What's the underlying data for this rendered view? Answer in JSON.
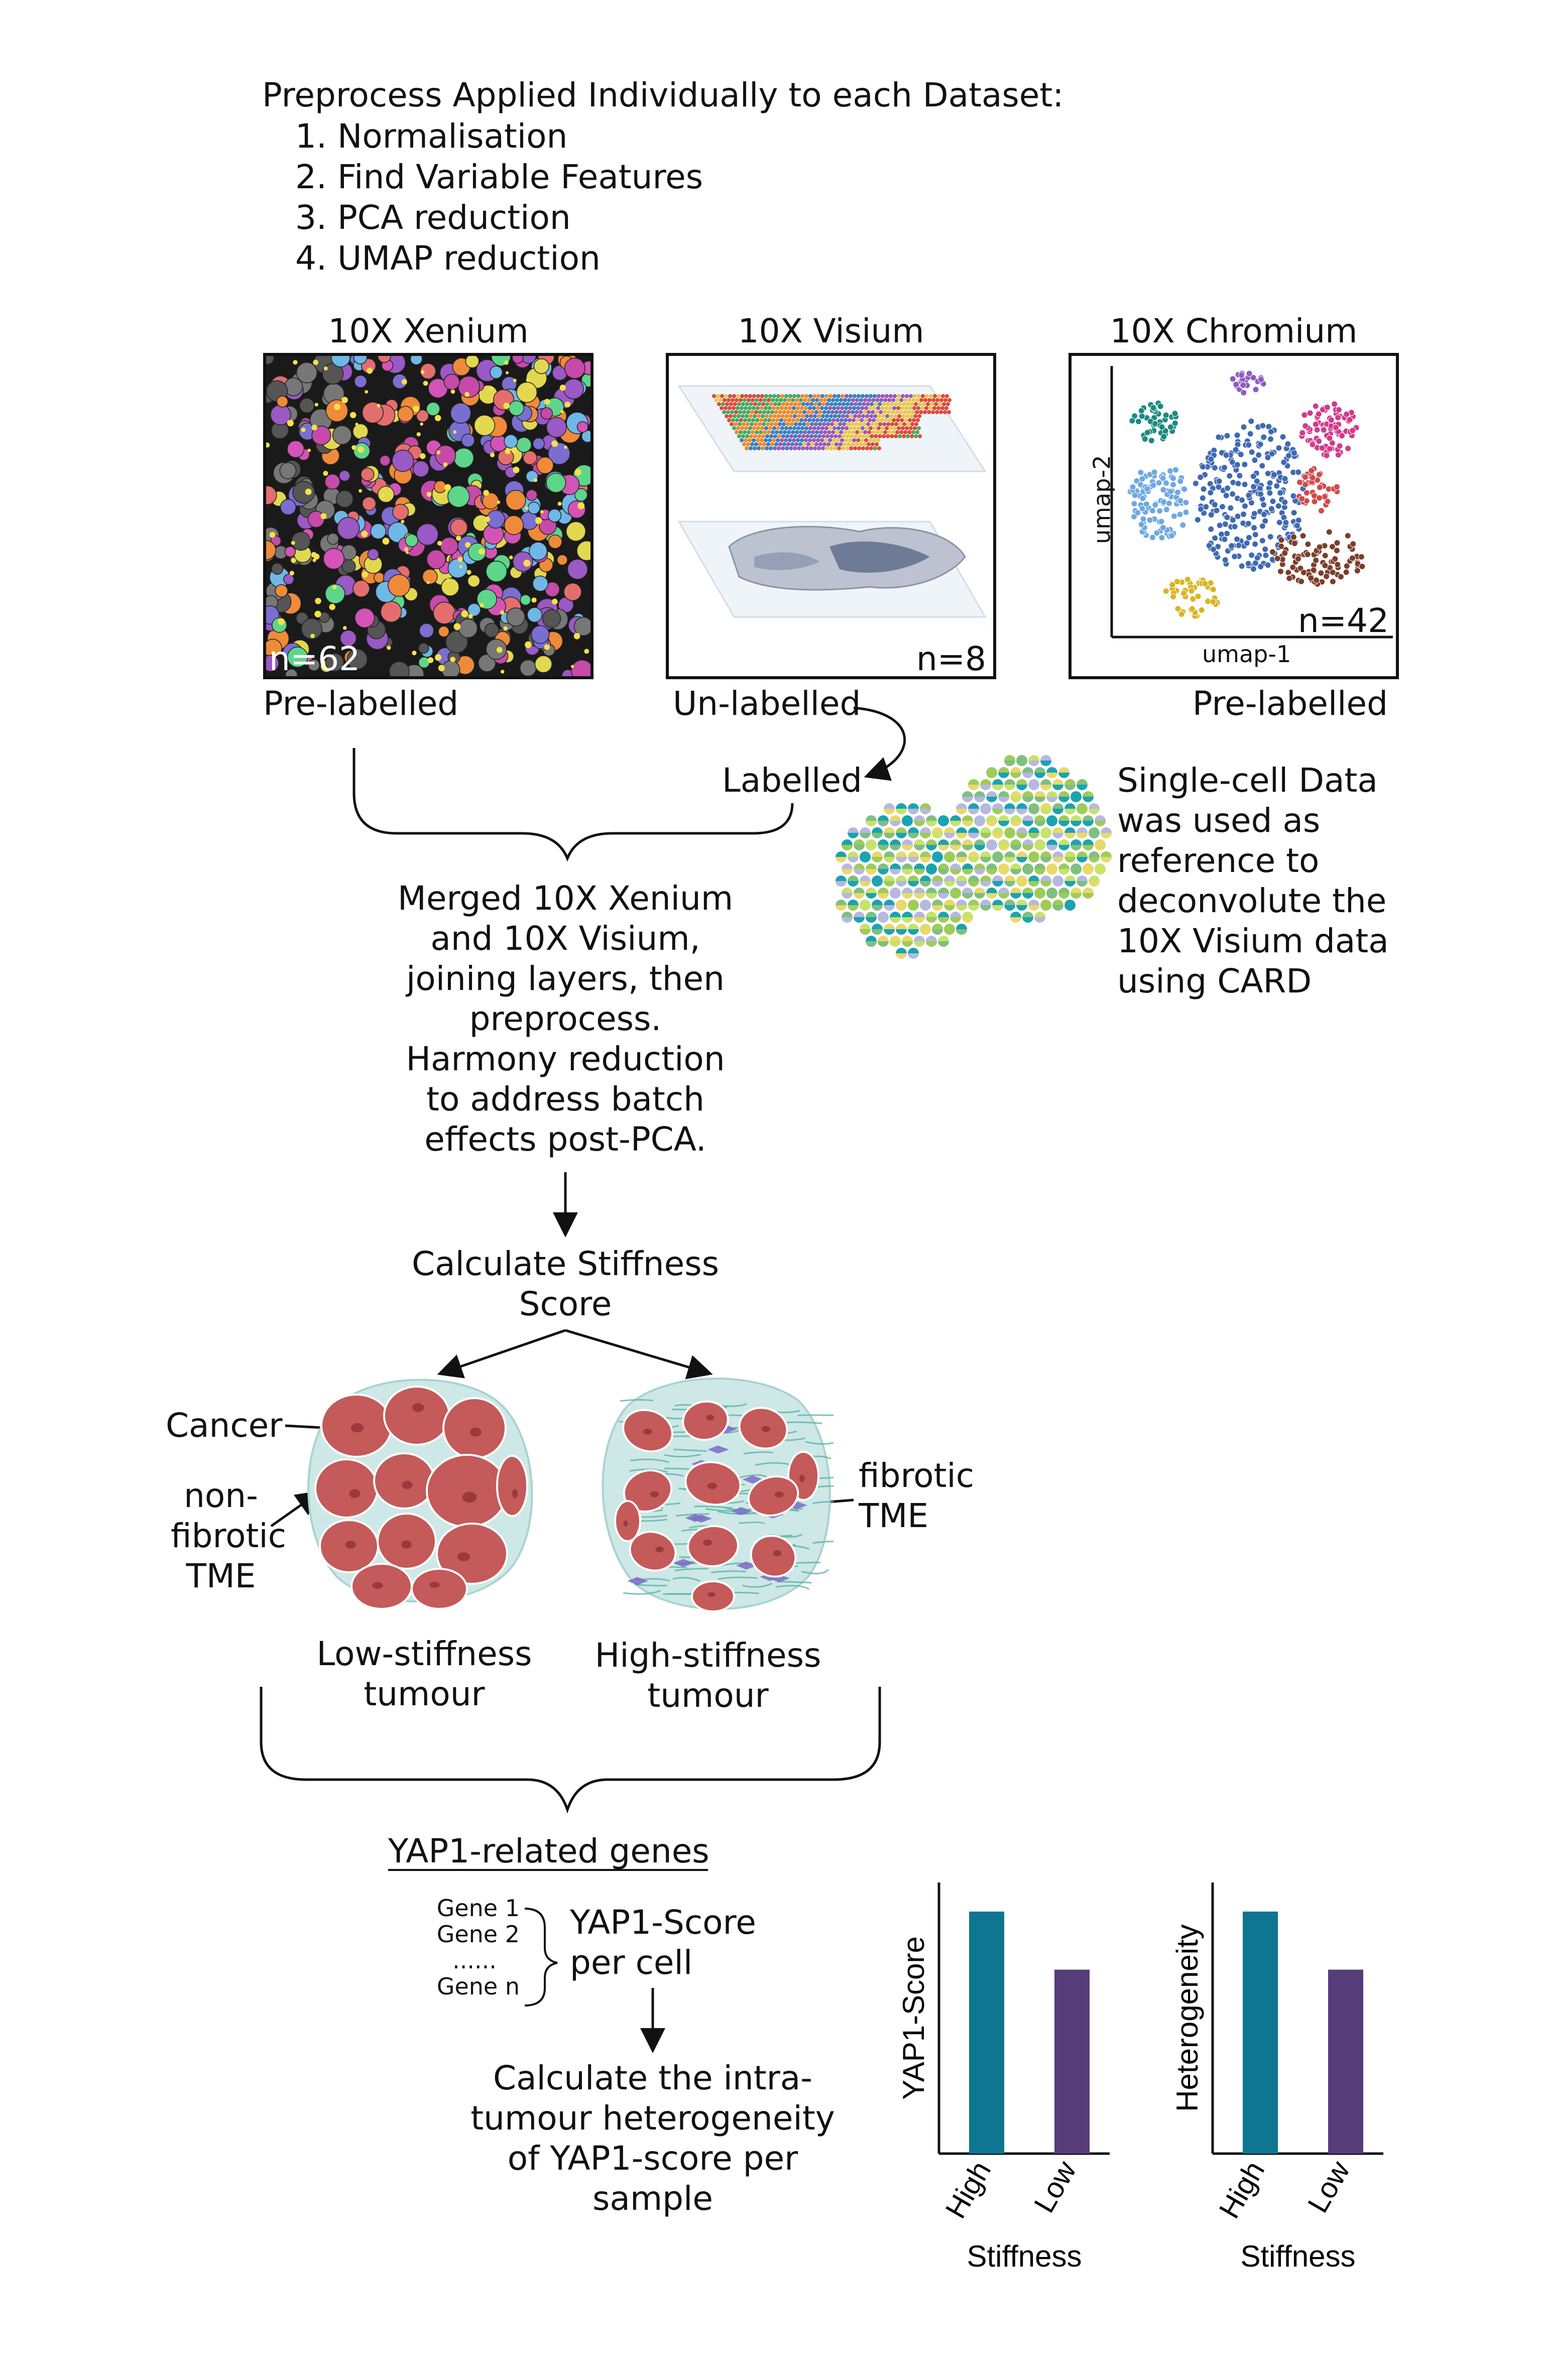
{
  "preprocess": {
    "heading": "Preprocess Applied Individually to each Dataset:",
    "steps": [
      "1.  Normalisation",
      "2.  Find Variable Features",
      "3.  PCA reduction",
      "4.  UMAP reduction"
    ]
  },
  "datasets": {
    "xenium": {
      "title": "10X Xenium",
      "n": "n=62",
      "status": "Pre-labelled"
    },
    "visium": {
      "title": "10X Visium",
      "n": "n=8",
      "status": "Un-labelled",
      "after": "Labelled"
    },
    "chromium": {
      "title": "10X Chromium",
      "n": "n=42",
      "status": "Pre-labelled",
      "xaxis": "umap-1",
      "yaxis": "umap-2"
    }
  },
  "deconvolution": {
    "lines": [
      "Single-cell Data",
      "was used as",
      "reference to",
      "deconvolute the",
      "10X Visium data",
      "using CARD"
    ]
  },
  "merge": {
    "lines": [
      "Merged 10X Xenium",
      "and 10X Visium,",
      "joining layers, then",
      "preprocess.",
      "Harmony reduction",
      "to address batch",
      "effects post-PCA."
    ]
  },
  "stiffness": {
    "lines": [
      "Calculate Stiffness",
      "Score"
    ]
  },
  "tumours": {
    "labels": {
      "cancer": "Cancer",
      "nonfibrotic": [
        "non-",
        "fibrotic",
        "TME"
      ],
      "fibrotic": [
        "fibrotic",
        "TME"
      ]
    },
    "low": [
      "Low-stiffness",
      "tumour"
    ],
    "high": [
      "High-stiffness",
      "tumour"
    ]
  },
  "yap": {
    "genes_title": "YAP1-related genes",
    "genes": [
      "Gene 1",
      "Gene 2",
      "......",
      "Gene n"
    ],
    "score": [
      "YAP1-Score",
      "per cell"
    ],
    "heterogeneity": [
      "Calculate the intra-",
      "tumour heterogeneity",
      "of YAP1-score per",
      "sample"
    ]
  },
  "colors": {
    "high": "#0e7691",
    "low": "#573c7a",
    "tumour_cell": "#c45a5a",
    "stroma": "#cde8e6"
  },
  "chart_data": [
    {
      "type": "bar",
      "categories": [
        "High",
        "Low"
      ],
      "values": [
        1.0,
        0.76
      ],
      "xlabel": "Stiffness",
      "ylabel": "YAP1-Score"
    },
    {
      "type": "bar",
      "categories": [
        "High",
        "Low"
      ],
      "values": [
        1.0,
        0.76
      ],
      "xlabel": "Stiffness",
      "ylabel": "Heterogeneity"
    }
  ]
}
